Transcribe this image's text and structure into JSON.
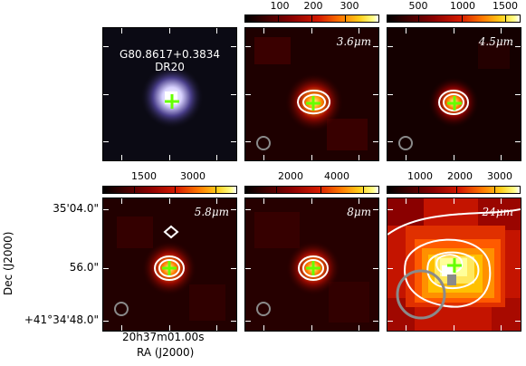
{
  "colorbars": [
    {
      "id": "cb-36",
      "labels": [
        "100",
        "200",
        "300"
      ]
    },
    {
      "id": "cb-45",
      "labels": [
        "500",
        "1000",
        "1500"
      ]
    },
    {
      "id": "cb-58",
      "labels": [
        "1500",
        "3000"
      ]
    },
    {
      "id": "cb-8",
      "labels": [
        "2000",
        "4000"
      ]
    },
    {
      "id": "cb-24",
      "labels": [
        "1000",
        "2000",
        "3000"
      ]
    }
  ],
  "panels": {
    "rgb": {
      "title_line1": "G80.8617+0.3834",
      "title_line2": "DR20"
    },
    "p36": {
      "wavelength": "3.6μm"
    },
    "p45": {
      "wavelength": "4.5μm"
    },
    "p58": {
      "wavelength": "5.8μm"
    },
    "p8": {
      "wavelength": "8μm"
    },
    "p24": {
      "wavelength": "24μm"
    }
  },
  "axes": {
    "dec_ticks": [
      "35'04.0\"",
      "56.0\"",
      "+41°34'48.0\""
    ],
    "ra_tick": "20h37m01.00s",
    "xlabel": "RA (J2000)",
    "ylabel": "Dec (J2000)"
  },
  "colors": {
    "marker": "#66ff00",
    "contour": "#ffffff",
    "beam": "#8a8a8a"
  }
}
